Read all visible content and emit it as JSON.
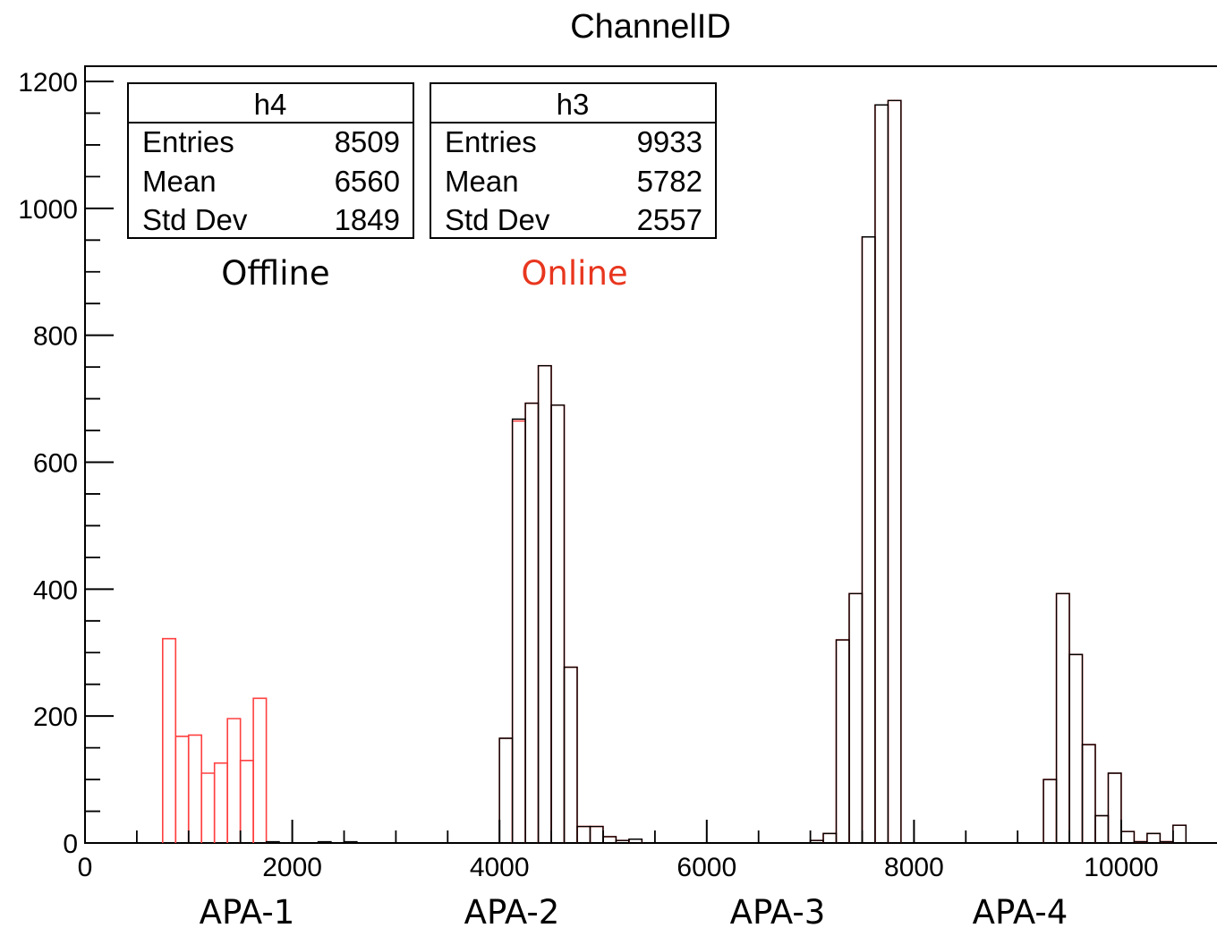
{
  "chart_data": {
    "type": "histogram",
    "title": "ChannelID",
    "xlim": [
      0,
      11000
    ],
    "ylim": [
      0,
      1230
    ],
    "bin_width": 125,
    "x_ticks": [
      0,
      2000,
      4000,
      6000,
      8000,
      10000
    ],
    "x_tick_labels": [
      "0",
      "2000",
      "4000",
      "6000",
      "8000",
      "10000"
    ],
    "y_ticks": [
      0,
      200,
      400,
      600,
      800,
      1000,
      1200
    ],
    "y_tick_labels": [
      "0",
      "200",
      "400",
      "600",
      "800",
      "1000",
      "1200"
    ],
    "grid": false,
    "legend": "none",
    "series": [
      {
        "name": "h3",
        "color": "#ff4040",
        "bins": [
          [
            812,
            322
          ],
          [
            937,
            168
          ],
          [
            1062,
            170
          ],
          [
            1187,
            110
          ],
          [
            1312,
            126
          ],
          [
            1437,
            196
          ],
          [
            1562,
            130
          ],
          [
            1687,
            228
          ],
          [
            4062,
            165
          ],
          [
            4187,
            665
          ],
          [
            4312,
            693
          ],
          [
            4437,
            752
          ],
          [
            4562,
            690
          ],
          [
            4687,
            277
          ],
          [
            4812,
            26
          ],
          [
            4937,
            26
          ],
          [
            5062,
            10
          ],
          [
            5187,
            4
          ],
          [
            5312,
            6
          ],
          [
            7062,
            4
          ],
          [
            7187,
            15
          ],
          [
            7312,
            320
          ],
          [
            7437,
            393
          ],
          [
            7562,
            955
          ],
          [
            7687,
            1163
          ],
          [
            7812,
            1170
          ],
          [
            9312,
            100
          ],
          [
            9437,
            393
          ],
          [
            9562,
            297
          ],
          [
            9687,
            155
          ],
          [
            9812,
            43
          ],
          [
            9937,
            110
          ],
          [
            10062,
            18
          ],
          [
            10187,
            2
          ],
          [
            10312,
            15
          ],
          [
            10437,
            2
          ],
          [
            10562,
            28
          ]
        ]
      },
      {
        "name": "h4",
        "color": "#000000",
        "bins": [
          [
            1812,
            2
          ],
          [
            2312,
            2
          ],
          [
            2562,
            2
          ],
          [
            4062,
            165
          ],
          [
            4187,
            668
          ],
          [
            4312,
            693
          ],
          [
            4437,
            752
          ],
          [
            4562,
            690
          ],
          [
            4687,
            277
          ],
          [
            4812,
            26
          ],
          [
            4937,
            26
          ],
          [
            5062,
            10
          ],
          [
            5187,
            4
          ],
          [
            5312,
            6
          ],
          [
            7062,
            4
          ],
          [
            7187,
            15
          ],
          [
            7312,
            320
          ],
          [
            7437,
            393
          ],
          [
            7562,
            955
          ],
          [
            7687,
            1163
          ],
          [
            7812,
            1170
          ],
          [
            9312,
            100
          ],
          [
            9437,
            393
          ],
          [
            9562,
            297
          ],
          [
            9687,
            155
          ],
          [
            9812,
            43
          ],
          [
            9937,
            110
          ],
          [
            10062,
            18
          ],
          [
            10187,
            2
          ],
          [
            10312,
            15
          ],
          [
            10437,
            2
          ],
          [
            10562,
            28
          ]
        ]
      }
    ],
    "stats_boxes": [
      {
        "name": "h4",
        "rows": [
          [
            "Entries",
            "8509"
          ],
          [
            "Mean",
            "6560"
          ],
          [
            "Std Dev",
            "1849"
          ]
        ]
      },
      {
        "name": "h3",
        "rows": [
          [
            "Entries",
            "9933"
          ],
          [
            "Mean",
            "5782"
          ],
          [
            "Std Dev",
            "2557"
          ]
        ]
      }
    ],
    "annotations": [
      {
        "text": "Offline",
        "color": "#000000"
      },
      {
        "text": "Online",
        "color": "#e8361e"
      }
    ],
    "region_labels": [
      "APA-1",
      "APA-2",
      "APA-3",
      "APA-4"
    ]
  }
}
